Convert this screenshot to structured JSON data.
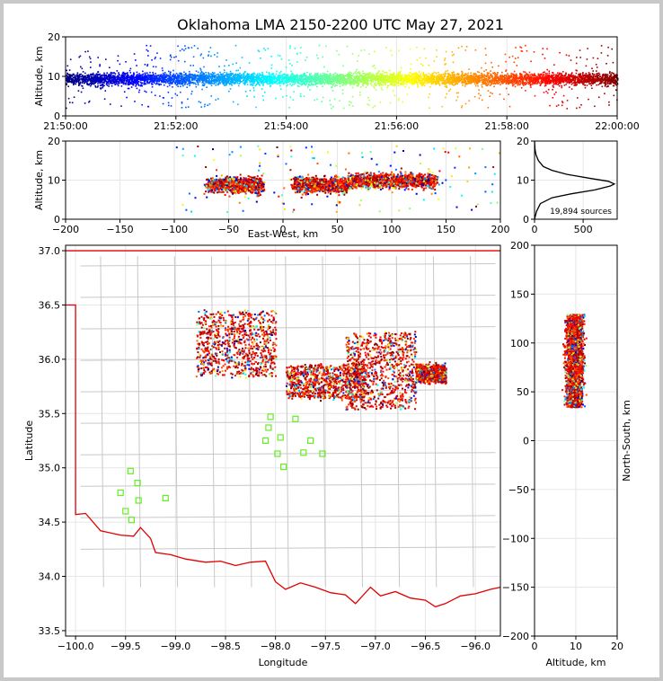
{
  "title": "Oklahoma LMA 2150-2200 UTC May 27, 2021",
  "chart_data": [
    {
      "type": "scatter",
      "panel": "altitude-time",
      "ylabel": "Altitude, km",
      "ylim": [
        0,
        20
      ],
      "xlim": [
        "21:50:00",
        "22:00:00"
      ],
      "x_ticks": [
        "21:50:00",
        "21:52:00",
        "21:54:00",
        "21:56:00",
        "21:58:00",
        "22:00:00"
      ],
      "y_ticks": [
        "0",
        "10",
        "20"
      ],
      "altitude_band_km": [
        6,
        13
      ],
      "color_scale": "time (blue to red)"
    },
    {
      "type": "scatter",
      "panel": "east-west-altitude",
      "xlabel": "East-West, km",
      "ylabel": "Altitude, km",
      "xlim": [
        -200,
        200
      ],
      "ylim": [
        0,
        20
      ],
      "x_ticks": [
        "−200",
        "−150",
        "−100",
        "−50",
        "0",
        "50",
        "100",
        "150",
        "200"
      ],
      "y_ticks": [
        "0",
        "10",
        "20"
      ],
      "clusters": [
        {
          "x_range": [
            -70,
            -20
          ],
          "alt_center": 9
        },
        {
          "x_range": [
            10,
            60
          ],
          "alt_center": 9
        },
        {
          "x_range": [
            60,
            140
          ],
          "alt_center": 10
        }
      ]
    },
    {
      "type": "line",
      "panel": "altitude-histogram",
      "annotation": "19,894 sources",
      "xlim": [
        0,
        850
      ],
      "ylim": [
        0,
        20
      ],
      "x_ticks": [
        "0",
        "500"
      ],
      "y_ticks": [
        "0",
        "10",
        "20"
      ],
      "profile": [
        [
          0,
          0
        ],
        [
          20,
          2
        ],
        [
          60,
          4
        ],
        [
          180,
          5.5
        ],
        [
          380,
          6.5
        ],
        [
          620,
          7.5
        ],
        [
          780,
          8.5
        ],
        [
          820,
          9
        ],
        [
          760,
          9.7
        ],
        [
          560,
          10.5
        ],
        [
          330,
          11.5
        ],
        [
          180,
          12.5
        ],
        [
          90,
          13.5
        ],
        [
          40,
          15
        ],
        [
          15,
          16.5
        ],
        [
          5,
          18
        ],
        [
          0,
          20
        ]
      ]
    },
    {
      "type": "scatter",
      "panel": "plan-view",
      "xlabel": "Longitude",
      "ylabel": "Latitude",
      "xlim": [
        -100.1,
        -95.75
      ],
      "ylim": [
        33.45,
        37.05
      ],
      "x_ticks": [
        "−100.0",
        "−99.5",
        "−99.0",
        "−98.5",
        "−98.0",
        "−97.5",
        "−97.0",
        "−96.5",
        "−96.0"
      ],
      "y_ticks": [
        "33.5",
        "34.0",
        "34.5",
        "35.0",
        "35.5",
        "36.0",
        "36.5",
        "37.0"
      ],
      "clusters": [
        {
          "lon": [
            -98.8,
            -98.0
          ],
          "lat": [
            35.85,
            36.45
          ]
        },
        {
          "lon": [
            -97.9,
            -97.1
          ],
          "lat": [
            35.65,
            35.95
          ]
        },
        {
          "lon": [
            -97.3,
            -96.6
          ],
          "lat": [
            35.55,
            36.25
          ]
        },
        {
          "lon": [
            -96.6,
            -96.3
          ],
          "lat": [
            35.8,
            35.95
          ]
        }
      ],
      "stations": [
        [
          -98.05,
          35.47
        ],
        [
          -97.8,
          35.45
        ],
        [
          -98.07,
          35.37
        ],
        [
          -97.95,
          35.28
        ],
        [
          -98.1,
          35.25
        ],
        [
          -97.65,
          35.25
        ],
        [
          -97.98,
          35.13
        ],
        [
          -97.72,
          35.14
        ],
        [
          -97.53,
          35.13
        ],
        [
          -97.92,
          35.01
        ],
        [
          -99.45,
          34.97
        ],
        [
          -99.38,
          34.86
        ],
        [
          -99.55,
          34.77
        ],
        [
          -99.1,
          34.72
        ],
        [
          -99.37,
          34.7
        ],
        [
          -99.5,
          34.6
        ],
        [
          -99.44,
          34.52
        ]
      ]
    },
    {
      "type": "scatter",
      "panel": "altitude-north-south",
      "xlabel": "Altitude, km",
      "ylabel": "North-South, km",
      "xlim": [
        0,
        20
      ],
      "ylim": [
        -200,
        200
      ],
      "x_ticks": [
        "0",
        "10",
        "20"
      ],
      "y_ticks": [
        "−200",
        "−150",
        "−100",
        "−50",
        "0",
        "50",
        "100",
        "150",
        "200"
      ]
    }
  ]
}
